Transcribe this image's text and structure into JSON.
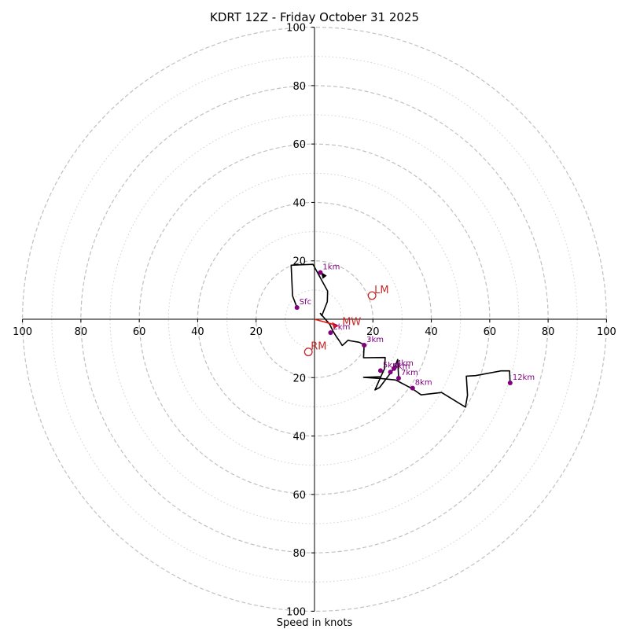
{
  "chart_data": {
    "type": "hodograph",
    "title": "KDRT 12Z - Friday October 31 2025",
    "xlabel": "Speed in knots",
    "units": "knots",
    "axis_range": [
      -100,
      100
    ],
    "x_tick_labels": [
      "100",
      "80",
      "60",
      "40",
      "20",
      "20",
      "40",
      "60",
      "80",
      "100"
    ],
    "y_tick_labels": [
      "100",
      "80",
      "60",
      "40",
      "20",
      "20",
      "40",
      "60",
      "80",
      "100"
    ],
    "tick_values": [
      -100,
      -80,
      -60,
      -40,
      -20,
      20,
      40,
      60,
      80,
      100
    ],
    "rings_dashed": [
      20,
      40,
      60,
      80,
      100
    ],
    "rings_dotted": [
      10,
      30,
      50,
      70,
      90
    ],
    "trace": [
      [
        -6,
        4
      ],
      [
        -7.5,
        8
      ],
      [
        -8,
        18.5
      ],
      [
        -0.5,
        18.8
      ],
      [
        4.5,
        9.6
      ],
      [
        4.4,
        6
      ],
      [
        2.5,
        1.2
      ],
      [
        2,
        2
      ],
      [
        5.2,
        -1.7
      ],
      [
        6.3,
        -4
      ],
      [
        7.5,
        -6
      ],
      [
        8.5,
        -7.4
      ],
      [
        9.5,
        -9
      ],
      [
        10,
        -8.6
      ],
      [
        11.5,
        -7.2
      ],
      [
        12.3,
        -7.4
      ],
      [
        15.3,
        -7.9
      ],
      [
        17,
        -8.7
      ],
      [
        16.8,
        -13.2
      ],
      [
        24.2,
        -13.1
      ],
      [
        24,
        -16.9
      ],
      [
        22.7,
        -19.7
      ],
      [
        16.8,
        -19.9
      ],
      [
        22.8,
        -20.3
      ],
      [
        27.8,
        -20.8
      ],
      [
        33.5,
        -23.8
      ],
      [
        36.5,
        -25.9
      ],
      [
        43.5,
        -25.1
      ],
      [
        51.7,
        -30.1
      ],
      [
        52.4,
        -26
      ],
      [
        52,
        -19.5
      ],
      [
        55.2,
        -19.3
      ],
      [
        63.8,
        -17.7
      ],
      [
        66.8,
        -17.7
      ],
      [
        67,
        -21.8
      ]
    ],
    "trace_extra": [
      [
        22.7,
        -19.7
      ],
      [
        20.7,
        -24.2
      ],
      [
        22.3,
        -23.4
      ],
      [
        27.5,
        -16.5
      ],
      [
        28.5,
        -13.8
      ],
      [
        28.8,
        -20.2
      ]
    ],
    "height_markers": [
      {
        "label": "Sfc",
        "u": -6,
        "v": 4
      },
      {
        "label": "1km",
        "u": 2,
        "v": 16
      },
      {
        "label": "2km",
        "u": 5.5,
        "v": -4.6
      },
      {
        "label": "3km",
        "u": 17,
        "v": -8.9
      },
      {
        "label": "4km",
        "u": 27.2,
        "v": -16.9
      },
      {
        "label": "5km",
        "u": 22.6,
        "v": -17.6
      },
      {
        "label": "6km",
        "u": 26,
        "v": -18.1
      },
      {
        "label": "7km",
        "u": 28.8,
        "v": -20.2
      },
      {
        "label": "8km",
        "u": 33.6,
        "v": -23.6
      },
      {
        "label": "12km",
        "u": 67,
        "v": -21.8
      }
    ],
    "storm_motions": [
      {
        "label": "LM",
        "u": 19.7,
        "v": 8.1
      },
      {
        "label": "RM",
        "u": -2.1,
        "v": -11.2
      }
    ],
    "mean_wind": {
      "label": "MW",
      "u": 8.4,
      "v": -2.3
    },
    "colors": {
      "trace": "#000000",
      "markers": "#800080",
      "storm": "#c62828",
      "mean_wind_arrow": "#e8190f",
      "ring": "#c0c0c0",
      "axis": "#000000"
    }
  }
}
